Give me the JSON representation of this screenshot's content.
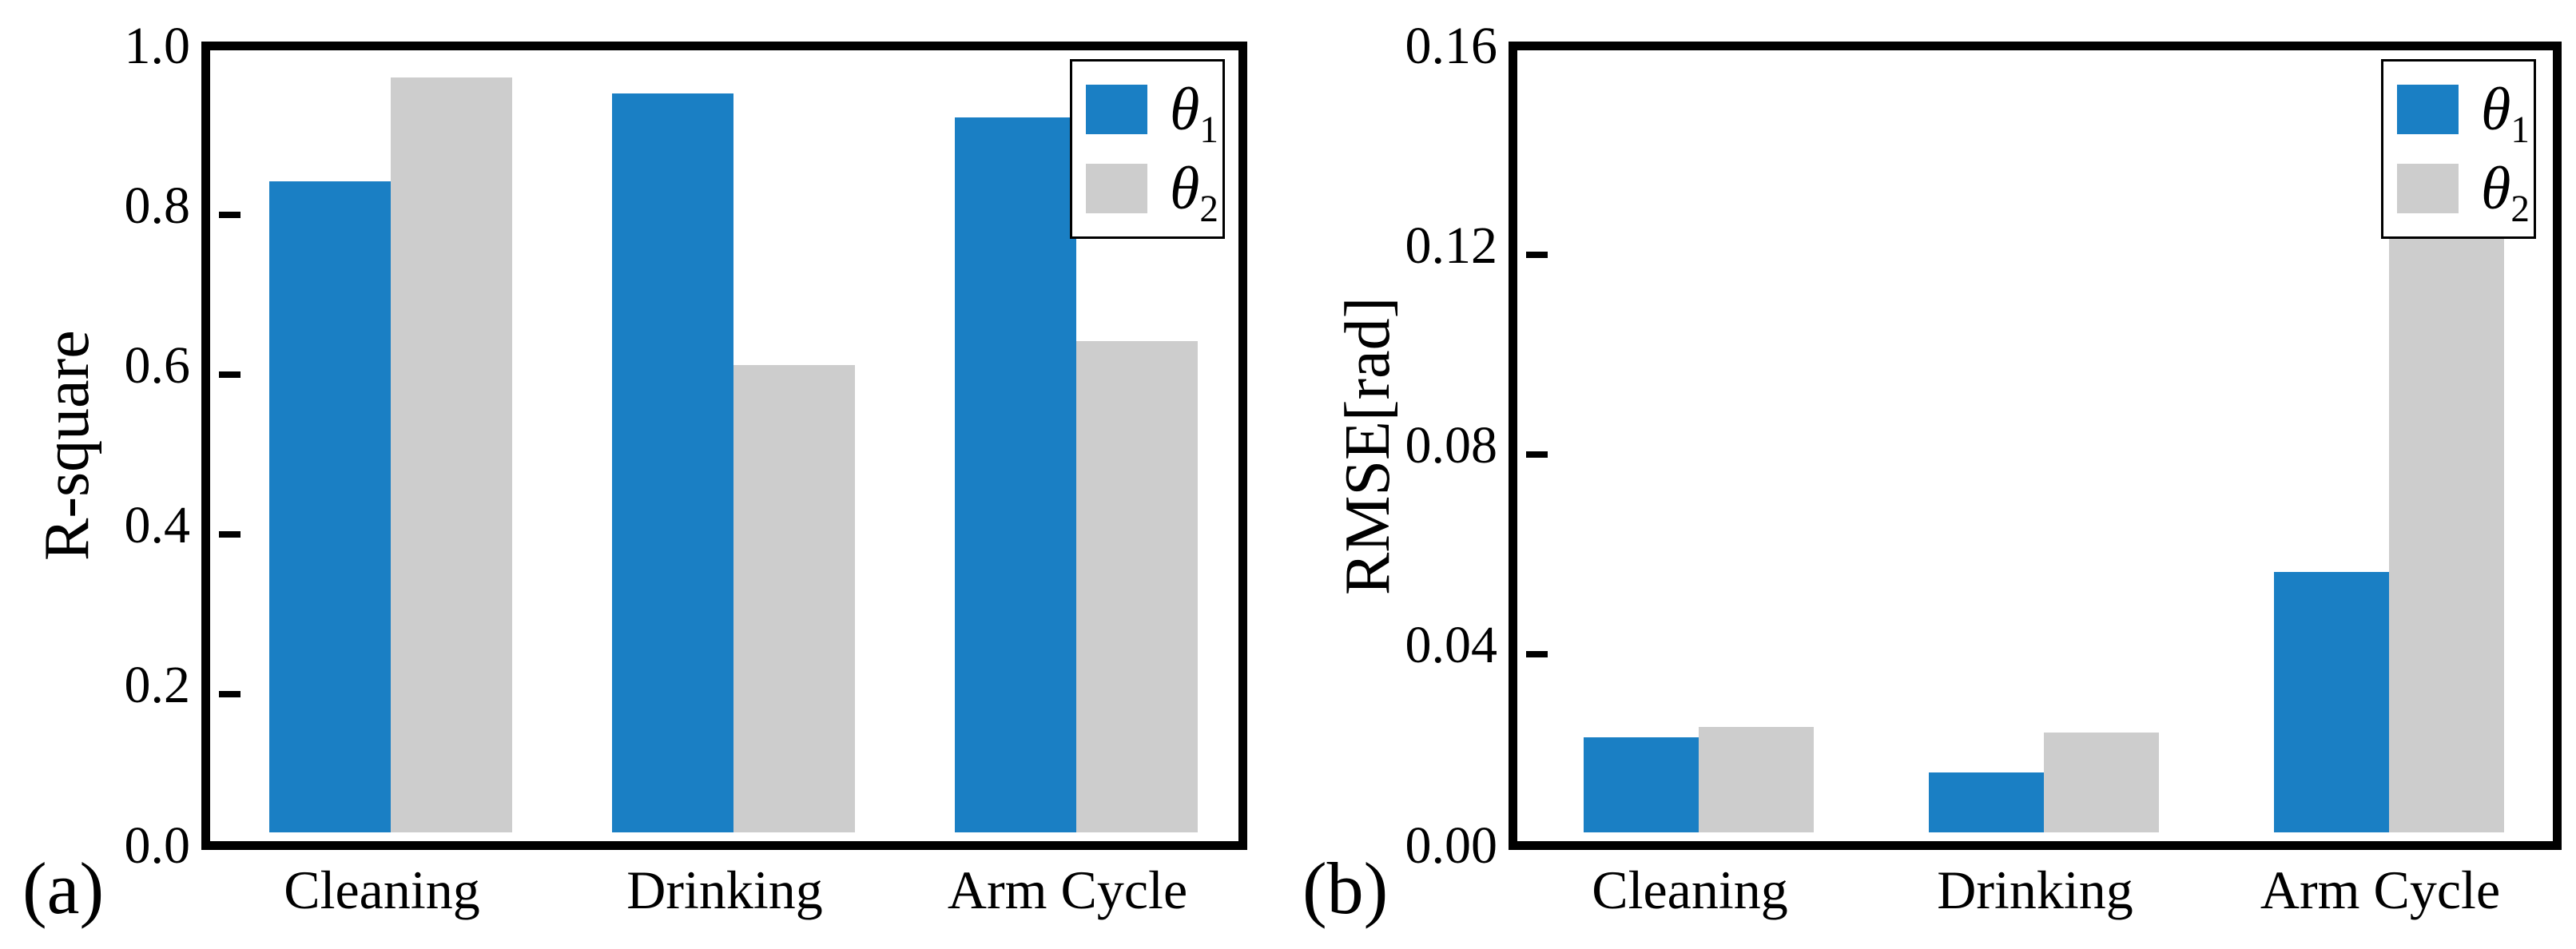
{
  "figure": {
    "background_color": "#ffffff",
    "text_color": "#000000"
  },
  "style": {
    "series_colors": [
      "#1a7fc4",
      "#cdcdcd"
    ],
    "spine_color": "#000000",
    "legend_border_color": "#000000"
  },
  "chart_data": [
    {
      "type": "bar",
      "panel_label": "(a)",
      "title": "",
      "xlabel": "",
      "ylabel": "R-square",
      "categories": [
        "Cleaning",
        "Drinking",
        "Arm Cycle"
      ],
      "series": [
        {
          "name": "θ1",
          "symbol": "θ",
          "subscript": "1",
          "values": [
            0.82,
            0.93,
            0.9
          ]
        },
        {
          "name": "θ2",
          "symbol": "θ",
          "subscript": "2",
          "values": [
            0.95,
            0.59,
            0.62
          ]
        }
      ],
      "ylim": [
        0.0,
        1.0
      ],
      "yticks": [
        "0.0",
        "0.2",
        "0.4",
        "0.6",
        "0.8",
        "1.0"
      ],
      "grid": false,
      "legend_position": "upper right"
    },
    {
      "type": "bar",
      "panel_label": "(b)",
      "title": "",
      "xlabel": "",
      "ylabel": "RMSE[rad]",
      "categories": [
        "Cleaning",
        "Drinking",
        "Arm Cycle"
      ],
      "series": [
        {
          "name": "θ1",
          "symbol": "θ",
          "subscript": "1",
          "values": [
            0.02,
            0.013,
            0.053
          ]
        },
        {
          "name": "θ2",
          "symbol": "θ",
          "subscript": "2",
          "values": [
            0.022,
            0.021,
            0.123
          ]
        }
      ],
      "ylim": [
        0.0,
        0.16
      ],
      "yticks": [
        "0.00",
        "0.04",
        "0.08",
        "0.12",
        "0.16"
      ],
      "grid": false,
      "legend_position": "upper right"
    }
  ]
}
